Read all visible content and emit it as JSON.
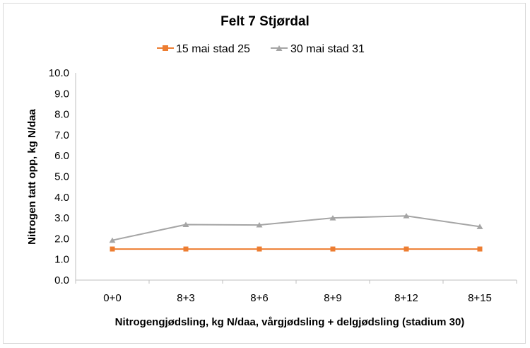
{
  "chart_data": {
    "type": "line",
    "title": "Felt 7 Stjørdal",
    "xlabel": "Nitrogengjødsling, kg N/daa, vårgjødsling + delgjødsling (stadium 30)",
    "ylabel": "Nitrogen tatt opp, kg N/daa",
    "categories": [
      "0+0",
      "8+3",
      "8+6",
      "8+9",
      "8+12",
      "8+15"
    ],
    "ylim": [
      0,
      10
    ],
    "yticks": [
      "0.0",
      "1.0",
      "2.0",
      "3.0",
      "4.0",
      "5.0",
      "6.0",
      "7.0",
      "8.0",
      "9.0",
      "10.0"
    ],
    "grid": false,
    "legend_position": "top",
    "series": [
      {
        "name": "15 mai stad 25",
        "color": "#ed7d31",
        "marker": "square",
        "values": [
          1.5,
          1.5,
          1.5,
          1.5,
          1.5,
          1.5
        ]
      },
      {
        "name": "30 mai stad 31",
        "color": "#a5a5a5",
        "marker": "triangle",
        "values": [
          1.92,
          2.68,
          2.66,
          3.0,
          3.1,
          2.58
        ]
      }
    ]
  }
}
